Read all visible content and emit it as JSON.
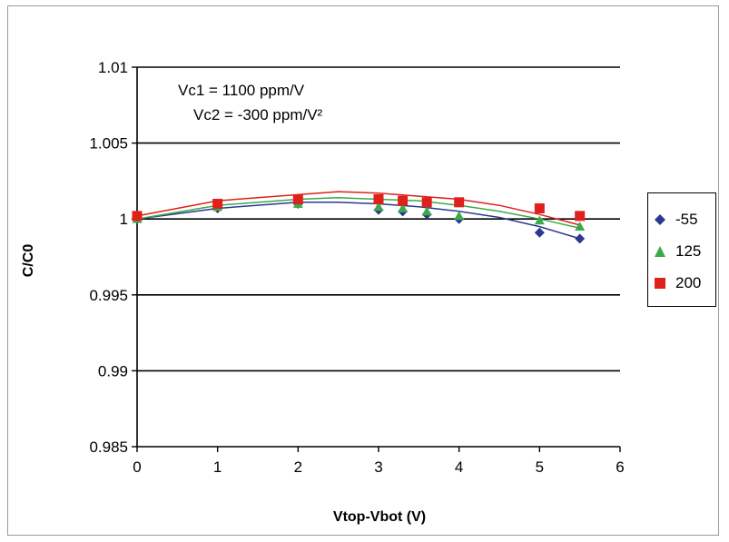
{
  "chart_data": {
    "type": "scatter",
    "title": "",
    "xlabel": "Vtop-Vbot (V)",
    "ylabel": "C/C0",
    "xlim": [
      0,
      6
    ],
    "ylim": [
      0.985,
      1.01
    ],
    "x_ticks": [
      "0",
      "1",
      "2",
      "3",
      "4",
      "5",
      "6"
    ],
    "y_ticks": [
      "1.01",
      "1.005",
      "1",
      "0.995",
      "0.99",
      "0.985"
    ],
    "grid": "horizontal",
    "legend_position": "right",
    "annotations": [
      "Vc1 = 1100 ppm/V",
      "Vc2 = -300 ppm/V²"
    ],
    "series": [
      {
        "name": "-55",
        "marker": "diamond",
        "color": "#2b3990",
        "points": [
          [
            0,
            1.0
          ],
          [
            1,
            1.0007
          ],
          [
            2,
            1.001
          ],
          [
            3,
            1.0006
          ],
          [
            3.3,
            1.0005
          ],
          [
            3.6,
            1.0003
          ],
          [
            4,
            1.0
          ],
          [
            5,
            0.9991
          ],
          [
            5.5,
            0.9987
          ]
        ],
        "fit": [
          [
            0,
            1.0
          ],
          [
            1,
            1.0007
          ],
          [
            2,
            1.0011
          ],
          [
            2.5,
            1.0011
          ],
          [
            3,
            1.001
          ],
          [
            3.5,
            1.0008
          ],
          [
            4,
            1.0005
          ],
          [
            4.5,
            1.0001
          ],
          [
            5,
            0.9995
          ],
          [
            5.5,
            0.9987
          ]
        ]
      },
      {
        "name": "125",
        "marker": "triangle",
        "color": "#3aaa4a",
        "points": [
          [
            0,
            1.0
          ],
          [
            1,
            1.0008
          ],
          [
            2,
            1.001
          ],
          [
            3,
            1.0008
          ],
          [
            3.3,
            1.0007
          ],
          [
            3.6,
            1.0005
          ],
          [
            4,
            1.0002
          ],
          [
            5,
            0.9999
          ],
          [
            5.5,
            0.9995
          ]
        ],
        "fit": [
          [
            0,
            1.0
          ],
          [
            1,
            1.0009
          ],
          [
            2,
            1.0013
          ],
          [
            2.5,
            1.0014
          ],
          [
            3,
            1.0013
          ],
          [
            3.5,
            1.0012
          ],
          [
            4,
            1.0009
          ],
          [
            4.5,
            1.0005
          ],
          [
            5,
            1.0
          ],
          [
            5.5,
            0.9994
          ]
        ]
      },
      {
        "name": "200",
        "marker": "square",
        "color": "#e0201b",
        "points": [
          [
            0,
            1.0002
          ],
          [
            1,
            1.001
          ],
          [
            2,
            1.0013
          ],
          [
            3,
            1.0013
          ],
          [
            3.3,
            1.0012
          ],
          [
            3.6,
            1.0011
          ],
          [
            4,
            1.0011
          ],
          [
            5,
            1.0007
          ],
          [
            5.5,
            1.0002
          ]
        ],
        "fit": [
          [
            0,
            1.0002
          ],
          [
            1,
            1.0012
          ],
          [
            2,
            1.0016
          ],
          [
            2.5,
            1.0018
          ],
          [
            3,
            1.0017
          ],
          [
            3.5,
            1.0015
          ],
          [
            4,
            1.0013
          ],
          [
            4.5,
            1.0009
          ],
          [
            5,
            1.0003
          ],
          [
            5.5,
            0.9996
          ]
        ]
      }
    ]
  }
}
